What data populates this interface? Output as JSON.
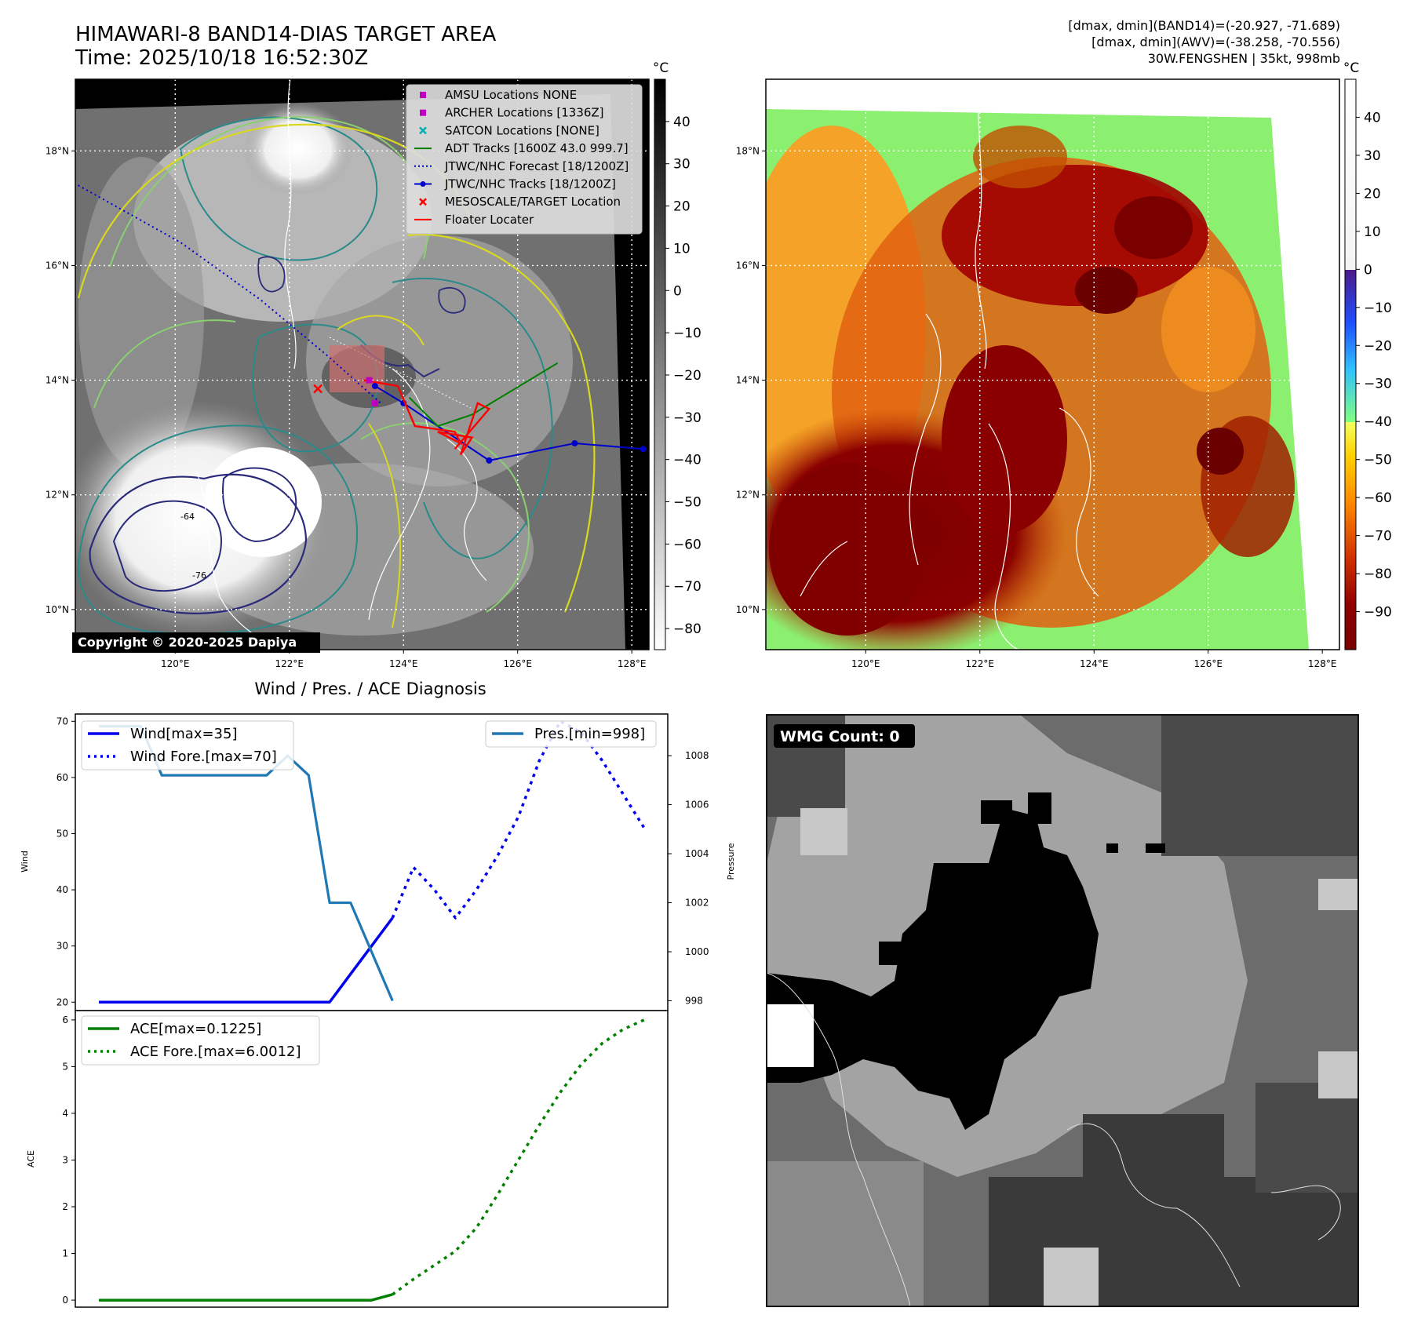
{
  "header": {
    "title": "HIMAWARI-8 BAND14-DIAS TARGET AREA",
    "time": "Time: 2025/10/18 16:52:30Z",
    "info_lines": [
      "[dmax, dmin](BAND14)=(-20.927, -71.689)",
      "[dmax, dmin](AWV)=(-38.258, -70.556)",
      "30W.FENGSHEN | 35kt, 998mb"
    ]
  },
  "maps": {
    "lon_labels": [
      "120°E",
      "122°E",
      "124°E",
      "126°E",
      "128°E"
    ],
    "lon_values": [
      120,
      122,
      124,
      126,
      128
    ],
    "lat_labels": [
      "10°N",
      "12°N",
      "14°N",
      "16°N",
      "18°N"
    ],
    "lat_values": [
      10,
      12,
      14,
      16,
      18
    ],
    "lon_range": [
      118.25,
      128.3
    ],
    "lat_range": [
      9.3,
      19.25
    ],
    "copyright": "Copyright © 2020-2025 Dapiya",
    "legend": [
      {
        "label": "AMSU Locations NONE",
        "marker": "square",
        "color": "#c000c0"
      },
      {
        "label": "ARCHER Locations [1336Z]",
        "marker": "square",
        "color": "#c000c0"
      },
      {
        "label": "SATCON Locations [NONE]",
        "marker": "x",
        "color": "#00b0b0"
      },
      {
        "label": "ADT Tracks [1600Z 43.0 999.7]",
        "marker": "line",
        "color": "#008000"
      },
      {
        "label": "JTWC/NHC Forecast [18/1200Z]",
        "marker": "dotted",
        "color": "#0000cc"
      },
      {
        "label": "JTWC/NHC Tracks [18/1200Z]",
        "marker": "line-dot",
        "color": "#0000cc"
      },
      {
        "label": "MESOSCALE/TARGET Location",
        "marker": "x",
        "color": "#ff0000"
      },
      {
        "label": "Floater Locater",
        "marker": "line",
        "color": "#ff0000"
      }
    ],
    "contour_labels": [
      "-64",
      "-76"
    ],
    "wmg": "WMG Count: 0"
  },
  "colorbars": {
    "unit": "°C",
    "left_ticks": [
      "40",
      "30",
      "20",
      "10",
      "0",
      "−10",
      "−20",
      "−30",
      "−40",
      "−50",
      "−60",
      "−70",
      "−80"
    ],
    "left_values": [
      40,
      30,
      20,
      10,
      0,
      -10,
      -20,
      -30,
      -40,
      -50,
      -60,
      -70,
      -80
    ],
    "left_range": [
      -85,
      50
    ],
    "right_ticks": [
      "40",
      "30",
      "20",
      "10",
      "0",
      "−10",
      "−20",
      "−30",
      "−40",
      "−50",
      "−60",
      "−70",
      "−80",
      "−90"
    ],
    "right_values": [
      40,
      30,
      20,
      10,
      0,
      -10,
      -20,
      -30,
      -40,
      -50,
      -60,
      -70,
      -80,
      -90
    ],
    "right_range": [
      -100,
      50
    ]
  },
  "chart_data": [
    {
      "type": "line",
      "title": "Wind / Pres. / ACE Diagnosis",
      "ylabel": "Wind",
      "y2label": "Pressure",
      "x": [
        0,
        1,
        2,
        3,
        4,
        5,
        6,
        7,
        8,
        9,
        10,
        11,
        12,
        13,
        14,
        15,
        16,
        17,
        18,
        19,
        20,
        21,
        22,
        23,
        24,
        25,
        26
      ],
      "ylim": [
        18.5,
        71.3
      ],
      "y2lim": [
        997.6,
        1009.7
      ],
      "yticks": [
        20,
        30,
        40,
        50,
        60,
        70
      ],
      "y2ticks": [
        998,
        1000,
        1002,
        1004,
        1006,
        1008
      ],
      "series": [
        {
          "name": "Wind[max=35]",
          "axis": "left",
          "style": "solid",
          "color": "#0000ee",
          "x": [
            0,
            11,
            12,
            13,
            14
          ],
          "values": [
            20,
            20,
            25,
            30,
            35
          ]
        },
        {
          "name": "Wind Fore.[max=70]",
          "axis": "left",
          "style": "dotted",
          "color": "#0000ee",
          "x": [
            14,
            15,
            16,
            17,
            18,
            19,
            20,
            21,
            22,
            23,
            24,
            25,
            26
          ],
          "values": [
            35,
            44,
            40,
            35,
            40,
            46,
            53,
            63,
            70,
            68,
            63,
            57,
            51
          ]
        },
        {
          "name": "Pres.[min=998]",
          "axis": "right",
          "style": "solid",
          "color": "#1f77b4",
          "x": [
            0,
            1,
            2,
            3,
            4,
            5,
            6,
            7,
            8,
            9,
            10,
            11,
            12,
            13,
            14
          ],
          "values": [
            1009.2,
            1009.2,
            1009.2,
            1007.2,
            1007.2,
            1007.2,
            1007.2,
            1007.2,
            1007.2,
            1008,
            1007.2,
            1002,
            1002,
            1000,
            998
          ]
        }
      ]
    },
    {
      "type": "line",
      "ylabel": "ACE",
      "x": [
        0,
        1,
        2,
        3,
        4,
        5,
        6,
        7,
        8,
        9,
        10,
        11,
        12,
        13,
        14,
        15,
        16,
        17,
        18,
        19,
        20,
        21,
        22,
        23,
        24,
        25,
        26
      ],
      "ylim": [
        -0.15,
        6.2
      ],
      "yticks": [
        0,
        1,
        2,
        3,
        4,
        5,
        6
      ],
      "series": [
        {
          "name": "ACE[max=0.1225]",
          "style": "solid",
          "color": "#008000",
          "x": [
            0,
            13,
            14
          ],
          "values": [
            0,
            0,
            0.1225
          ]
        },
        {
          "name": "ACE Fore.[max=6.0012]",
          "style": "dotted",
          "color": "#008000",
          "x": [
            14,
            15,
            16,
            17,
            18,
            19,
            20,
            21,
            22,
            23,
            24,
            25,
            26
          ],
          "values": [
            0.1225,
            0.45,
            0.75,
            1.05,
            1.55,
            2.25,
            3.0,
            3.75,
            4.45,
            5.05,
            5.5,
            5.8,
            6.0012
          ]
        }
      ]
    }
  ]
}
